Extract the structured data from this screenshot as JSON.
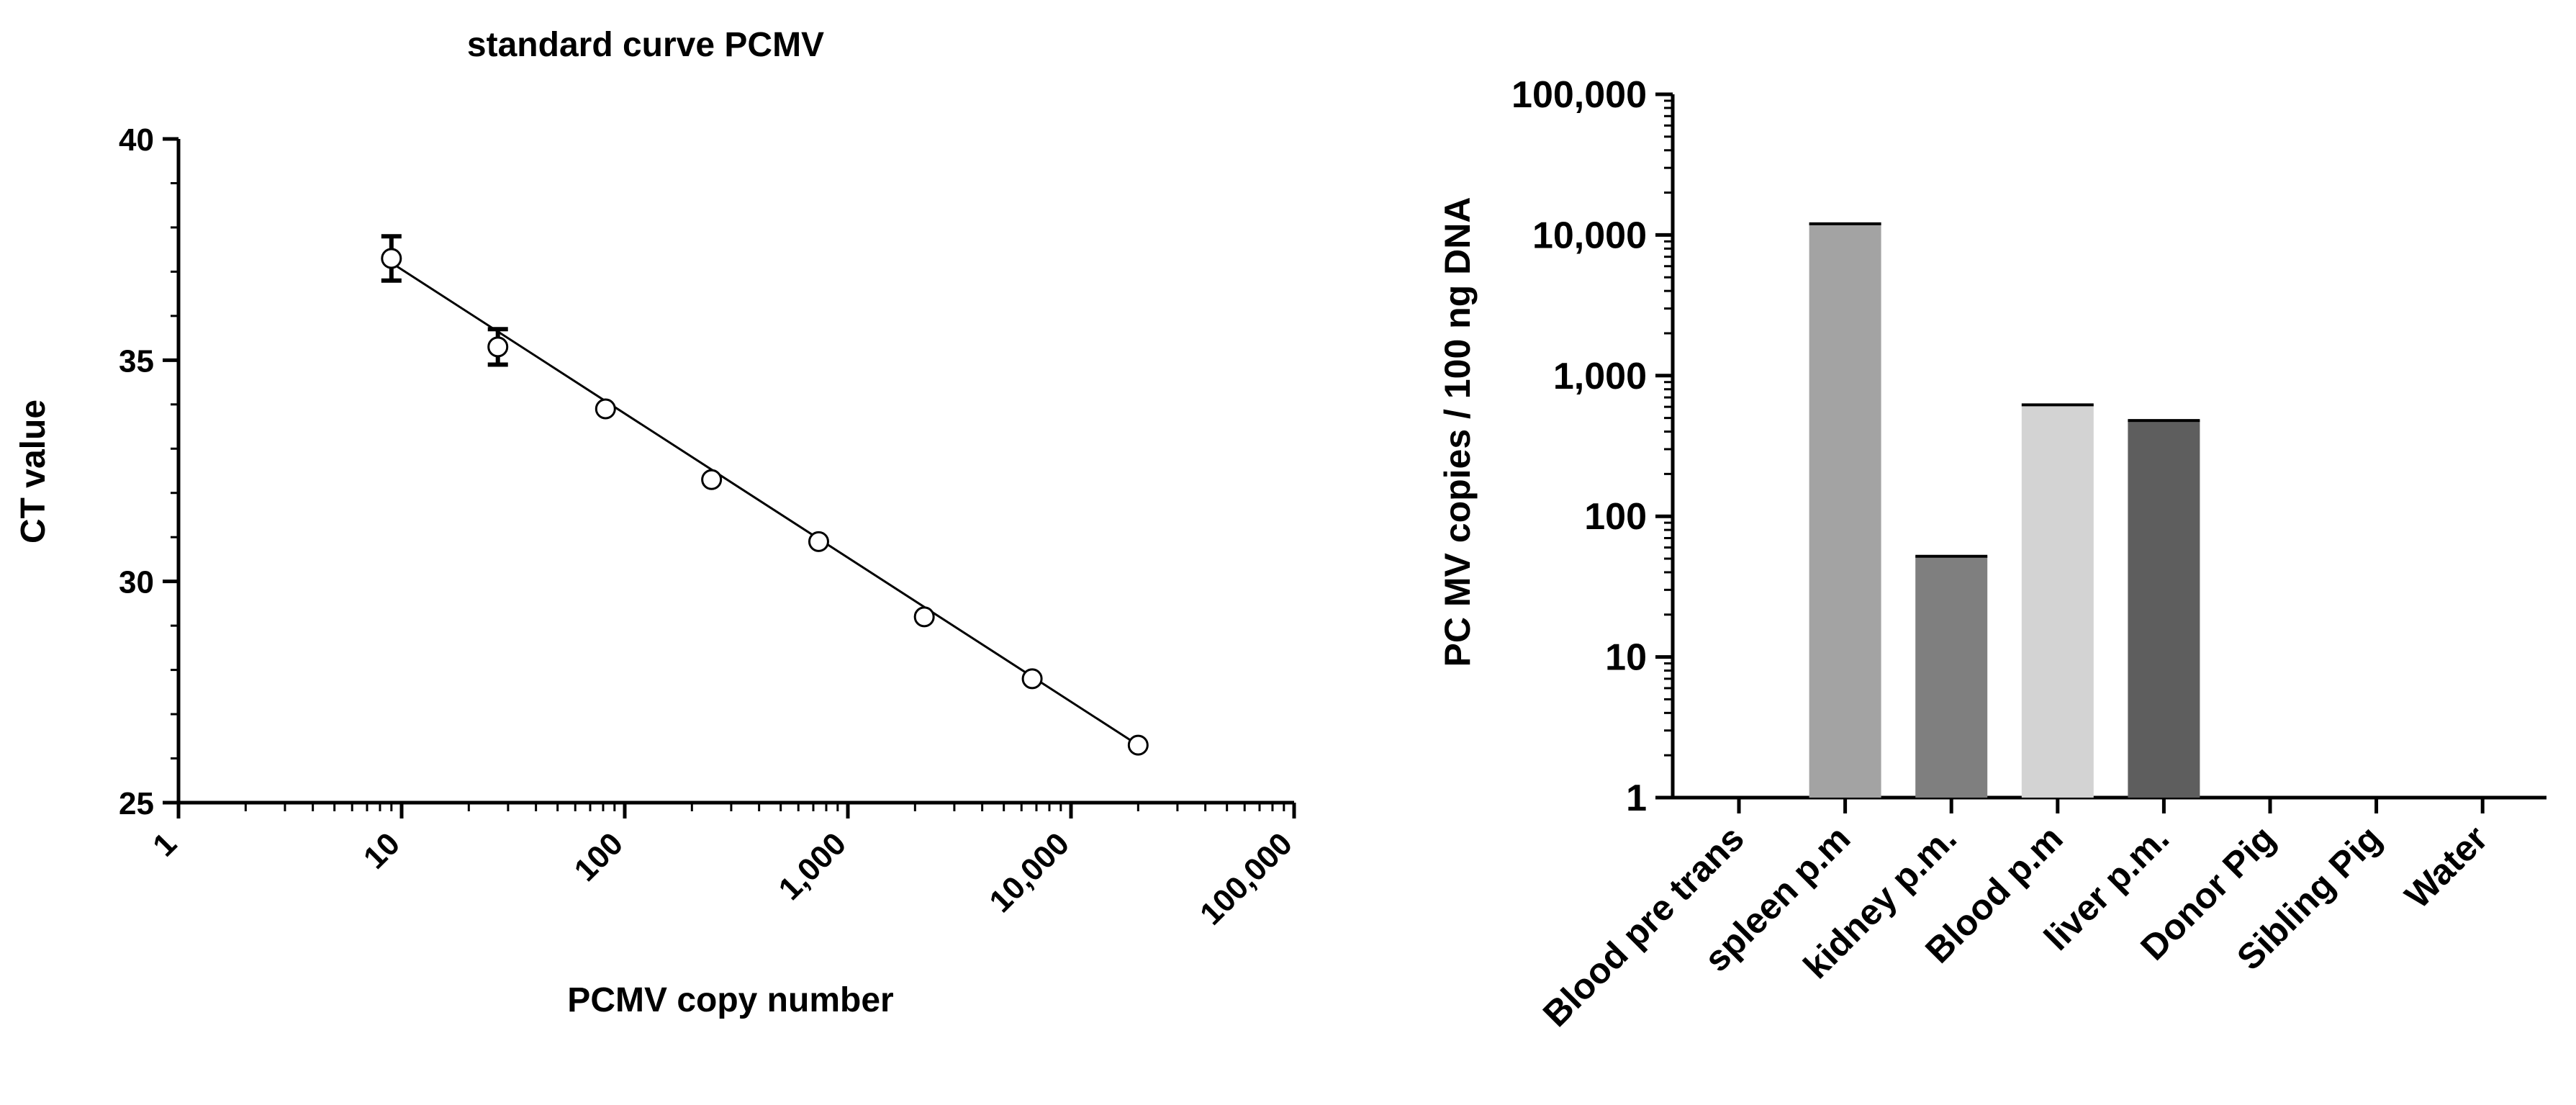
{
  "chart_data": [
    {
      "type": "scatter",
      "title": "standard curve PCMV",
      "xlabel": "PCMV copy number",
      "ylabel": "CT value",
      "x_scale": "log",
      "xlim": [
        1,
        100000
      ],
      "ylim": [
        25,
        40
      ],
      "x_tick_labels": [
        "1",
        "10",
        "100",
        "1,000",
        "10,000",
        "100,000"
      ],
      "y_tick_labels": [
        "25",
        "30",
        "35",
        "40"
      ],
      "points": [
        {
          "x": 9,
          "y": 37.3,
          "err": 0.5
        },
        {
          "x": 27,
          "y": 35.3,
          "err": 0.4
        },
        {
          "x": 82,
          "y": 33.9,
          "err": 0
        },
        {
          "x": 245,
          "y": 32.3,
          "err": 0
        },
        {
          "x": 740,
          "y": 30.9,
          "err": 0
        },
        {
          "x": 2200,
          "y": 29.2,
          "err": 0
        },
        {
          "x": 6700,
          "y": 27.8,
          "err": 0
        },
        {
          "x": 20000,
          "y": 26.3,
          "err": 0
        }
      ],
      "fit_line": {
        "x": [
          9,
          20000
        ],
        "y": [
          37.2,
          26.3
        ]
      },
      "grid": false
    },
    {
      "type": "bar",
      "ylabel": "PC MV copies / 100 ng DNA",
      "y_scale": "log",
      "ylim": [
        1,
        100000
      ],
      "y_tick_labels": [
        "1",
        "10",
        "100",
        "1,000",
        "10,000",
        "100,000"
      ],
      "categories": [
        "Blood pre trans",
        "spleen p.m",
        "kidney p.m.",
        "Blood p.m",
        "liver p.m.",
        "Donor Pig",
        "Sibling Pig",
        "Water"
      ],
      "values": [
        1,
        12000,
        52,
        620,
        480,
        1,
        1,
        1
      ],
      "colors": [
        "#000000",
        "#a3a3a3",
        "#7f7f7f",
        "#d3d3d3",
        "#5e5e5e",
        "#000000",
        "#000000",
        "#000000"
      ],
      "grid": false
    }
  ]
}
